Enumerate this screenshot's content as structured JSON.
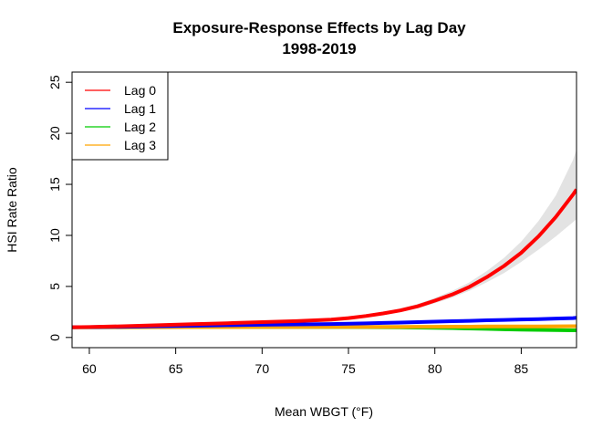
{
  "chart_data": {
    "type": "line",
    "title": "Exposure-Response Effects by Lag Day",
    "subtitle": "1998-2019",
    "xlabel": "Mean WBGT (°F)",
    "ylabel": "HSI Rate Ratio",
    "xlim": [
      59,
      88.2
    ],
    "ylim": [
      -1,
      26
    ],
    "x_ticks": [
      "60",
      "65",
      "70",
      "75",
      "80",
      "85"
    ],
    "y_ticks": [
      "0",
      "5",
      "10",
      "15",
      "20",
      "25"
    ],
    "grid": false,
    "legend_position": "top-left",
    "x": [
      59,
      60,
      62,
      64,
      66,
      68,
      70,
      72,
      74,
      75,
      76,
      77,
      78,
      79,
      80,
      81,
      82,
      83,
      84,
      85,
      86,
      87,
      88,
      88.2
    ],
    "series": [
      {
        "name": "Lag 0",
        "color": "#ff0000",
        "values": [
          1.0,
          1.02,
          1.1,
          1.2,
          1.3,
          1.4,
          1.5,
          1.6,
          1.75,
          1.9,
          2.1,
          2.35,
          2.65,
          3.05,
          3.6,
          4.2,
          4.95,
          5.9,
          7.0,
          8.3,
          9.9,
          11.8,
          14.0,
          14.5
        ],
        "ci_lower": [
          1.0,
          1.01,
          1.08,
          1.17,
          1.26,
          1.35,
          1.44,
          1.53,
          1.67,
          1.8,
          1.98,
          2.2,
          2.48,
          2.85,
          3.35,
          3.9,
          4.58,
          5.4,
          6.3,
          7.4,
          8.6,
          9.9,
          11.3,
          11.6
        ],
        "ci_upper": [
          1.0,
          1.03,
          1.12,
          1.23,
          1.34,
          1.45,
          1.57,
          1.68,
          1.84,
          2.0,
          2.23,
          2.5,
          2.84,
          3.28,
          3.88,
          4.55,
          5.4,
          6.5,
          7.8,
          9.4,
          11.4,
          13.9,
          17.4,
          18.4
        ]
      },
      {
        "name": "Lag 1",
        "color": "#0000ff",
        "values": [
          1.0,
          1.01,
          1.05,
          1.1,
          1.15,
          1.2,
          1.24,
          1.28,
          1.32,
          1.35,
          1.38,
          1.42,
          1.46,
          1.5,
          1.55,
          1.59,
          1.63,
          1.68,
          1.72,
          1.76,
          1.8,
          1.85,
          1.9,
          1.92
        ]
      },
      {
        "name": "Lag 2",
        "color": "#00cc00",
        "values": [
          1.0,
          1.0,
          1.0,
          1.01,
          1.01,
          1.02,
          1.02,
          1.02,
          1.02,
          1.02,
          1.01,
          1.0,
          0.99,
          0.97,
          0.95,
          0.92,
          0.88,
          0.84,
          0.8,
          0.77,
          0.74,
          0.72,
          0.7,
          0.7
        ]
      },
      {
        "name": "Lag 3",
        "color": "#ffa500",
        "values": [
          1.0,
          1.0,
          1.0,
          1.0,
          1.01,
          1.01,
          1.02,
          1.02,
          1.03,
          1.03,
          1.03,
          1.04,
          1.04,
          1.05,
          1.05,
          1.06,
          1.06,
          1.07,
          1.07,
          1.08,
          1.08,
          1.09,
          1.1,
          1.1
        ]
      }
    ]
  }
}
